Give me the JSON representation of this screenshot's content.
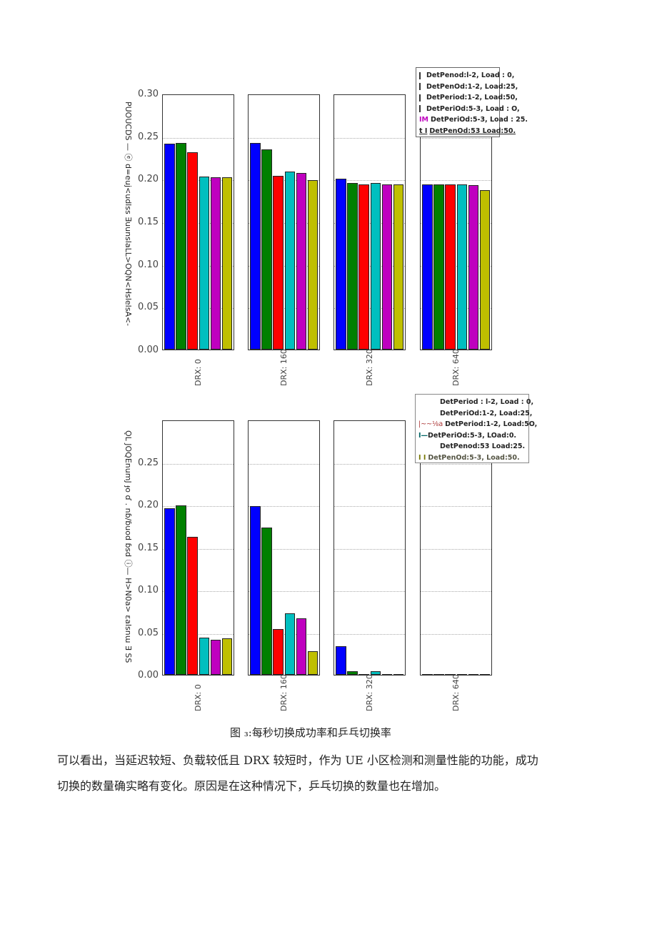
{
  "chart_data": [
    {
      "type": "bar",
      "title": "",
      "ylabel": "Success handovers per second (garbled OCR: PUOUCDS — d=euj<udlss ∃uunslaLL>OQN<HslelsA<-)",
      "xlabel": "",
      "ylim": [
        0,
        0.3
      ],
      "yticks": [
        "0.00",
        "0.05",
        "0.10",
        "0.15",
        "0.20",
        "0.25",
        "0.30"
      ],
      "categories": [
        "DRX: 0",
        "DRX: 160",
        "DRX: 320",
        "DRX: 640"
      ],
      "grid": true,
      "legend_position": "upper right, outside last panel",
      "series": [
        {
          "name": "DetPeriod:1-2, Load:0",
          "color": "#0000ff",
          "values": [
            0.241,
            0.242,
            0.2,
            0.194
          ]
        },
        {
          "name": "DetPeriod:1-2, Load:25",
          "color": "#008000",
          "values": [
            0.242,
            0.235,
            0.195,
            0.194
          ]
        },
        {
          "name": "DetPeriod:1-2, Load:50",
          "color": "#ff0000",
          "values": [
            0.231,
            0.204,
            0.194,
            0.194
          ]
        },
        {
          "name": "DetPeriod:5-3, Load:0",
          "color": "#00bfbf",
          "values": [
            0.203,
            0.209,
            0.195,
            0.194
          ]
        },
        {
          "name": "DetPeriod:5-3, Load:25",
          "color": "#bf00bf",
          "values": [
            0.202,
            0.207,
            0.194,
            0.193
          ]
        },
        {
          "name": "DetPeriod:5-3, Load:50",
          "color": "#bfbf00",
          "values": [
            0.202,
            0.199,
            0.194,
            0.187
          ]
        }
      ]
    },
    {
      "type": "bar",
      "title": "",
      "ylabel": "Number of ping-pong handovers per second (garbled OCR)",
      "xlabel": "",
      "ylim": [
        0,
        0.3
      ],
      "yticks": [
        "0.00",
        "0.05",
        "0.10",
        "0.15",
        "0.20",
        "0.25"
      ],
      "categories": [
        "DRX: 0",
        "DRX: 160",
        "DRX: 320",
        "DRX: 640"
      ],
      "grid": true,
      "legend_position": "upper right, outside last panel",
      "series": [
        {
          "name": "DetPeriod:1-2, Load:0",
          "color": "#0000ff",
          "values": [
            0.196,
            0.198,
            0.034,
            0.0005
          ]
        },
        {
          "name": "DetPeriod:1-2, Load:25",
          "color": "#008000",
          "values": [
            0.199,
            0.173,
            0.004,
            0.0005
          ]
        },
        {
          "name": "DetPeriod:1-2, Load:50",
          "color": "#ff0000",
          "values": [
            0.162,
            0.054,
            0.0005,
            0.0005
          ]
        },
        {
          "name": "DetPeriod:5-3, Load:0",
          "color": "#00bfbf",
          "values": [
            0.044,
            0.072,
            0.004,
            0.0
          ]
        },
        {
          "name": "DetPeriod:5-3, Load:25",
          "color": "#bf00bf",
          "values": [
            0.041,
            0.066,
            0.0005,
            0.0
          ]
        },
        {
          "name": "DetPeriod:5-3, Load:50",
          "color": "#bfbf00",
          "values": [
            0.043,
            0.028,
            0.0005,
            0.0
          ]
        }
      ]
    }
  ],
  "chart1": {
    "ytick_labels": [
      "0.00",
      "0.05",
      "0.10",
      "0.15",
      "0.20",
      "0.25",
      "0.30"
    ],
    "ylabel_text": "PUOUCDS — ⓔ d=euj<udlss ∃uunslaLL>OQN<HslelsA<-",
    "xlabels": [
      "DRX: 0",
      "DRX: 160",
      "DRX: 320",
      "DRX: 640"
    ],
    "legend": [
      "DetPenod:l-2, Load : 0,",
      "DetPenOd:1-2, Load:25,",
      "DetPeriod:1-2, Load:50,",
      "DetPeriOd:5-3, Load : O,",
      "DetPeriOd:5-3, Load : 25.",
      "DetPenOd:53 Load:50."
    ],
    "legend_prefix_5": "IM",
    "legend_prefix_6": "t I"
  },
  "chart2": {
    "ytick_labels": [
      "0.00",
      "0.05",
      "0.10",
      "0.15",
      "0.20",
      "0.25"
    ],
    "ylabel_text": "ǪL JOQEnumJ ɟo ɗ . nɓ/ɓuod ɓsd ⓘ— H>N0a> ɛalsnɯ ∃ SS",
    "xlabels": [
      "DRX: 0",
      "DRX: 160",
      "DRX: 320",
      "DRX: 640"
    ],
    "legend": [
      "DetPeriod : l-2, Load : 0,",
      "DetPeriOd:1-2, Load:25,",
      "DetPeriod:1-2, Load:5O,",
      "DetPeriOd:5-3, LOad:0.",
      "DetPenod:53 Load:25.",
      "DetPenOd:5-3, Load:50."
    ],
    "legend_prefix_3": "|~~⅛a",
    "legend_prefix_4": "I—",
    "legend_prefix_6": "I I"
  },
  "caption": "图 ₃:每秒切换成功率和乒乓切换率",
  "paragraph": {
    "line1": "可以看出，当延迟较短、负载较低且 DRX 较短时，作为 UE 小区检测和测量性能的功能，成功",
    "line2": "切换的数量确实略有变化。原因是在这种情况下，乒乓切换的数量也在增加。"
  }
}
